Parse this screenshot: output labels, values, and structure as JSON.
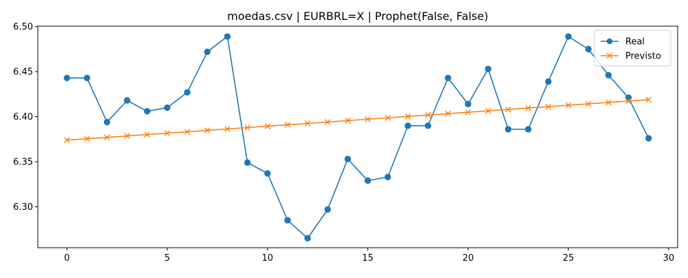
{
  "chart_data": {
    "type": "line",
    "title": "moedas.csv | EURBRL=X | Prophet(False, False)",
    "xlabel": "",
    "ylabel": "",
    "xlim": [
      -1.45,
      30.45
    ],
    "ylim": [
      6.2545,
      6.5005
    ],
    "x_ticks": [
      0,
      5,
      10,
      15,
      20,
      25,
      30
    ],
    "y_ticks": [
      6.3,
      6.35,
      6.4,
      6.45,
      6.5
    ],
    "grid": false,
    "legend_position": "top-right",
    "x": [
      0,
      1,
      2,
      3,
      4,
      5,
      6,
      7,
      8,
      9,
      10,
      11,
      12,
      13,
      14,
      15,
      16,
      17,
      18,
      19,
      20,
      21,
      22,
      23,
      24,
      25,
      26,
      27,
      28,
      29
    ],
    "series": [
      {
        "name": "Real",
        "color": "#1f77b4",
        "marker": "circle",
        "values": [
          6.443,
          6.443,
          6.394,
          6.418,
          6.406,
          6.41,
          6.427,
          6.472,
          6.489,
          6.349,
          6.337,
          6.285,
          6.265,
          6.297,
          6.353,
          6.329,
          6.333,
          6.39,
          6.39,
          6.443,
          6.414,
          6.453,
          6.386,
          6.386,
          6.439,
          6.489,
          6.475,
          6.446,
          6.421,
          6.376
        ]
      },
      {
        "name": "Previsto",
        "color": "#ff7f0e",
        "marker": "x",
        "values": [
          6.374,
          6.3755,
          6.377,
          6.3786,
          6.3801,
          6.3817,
          6.3832,
          6.3848,
          6.3863,
          6.3879,
          6.3894,
          6.391,
          6.3925,
          6.3941,
          6.3956,
          6.3972,
          6.3987,
          6.4003,
          6.4018,
          6.4034,
          6.4049,
          6.4065,
          6.408,
          6.4096,
          6.4111,
          6.4127,
          6.4142,
          6.4158,
          6.4173,
          6.4189
        ]
      }
    ]
  }
}
